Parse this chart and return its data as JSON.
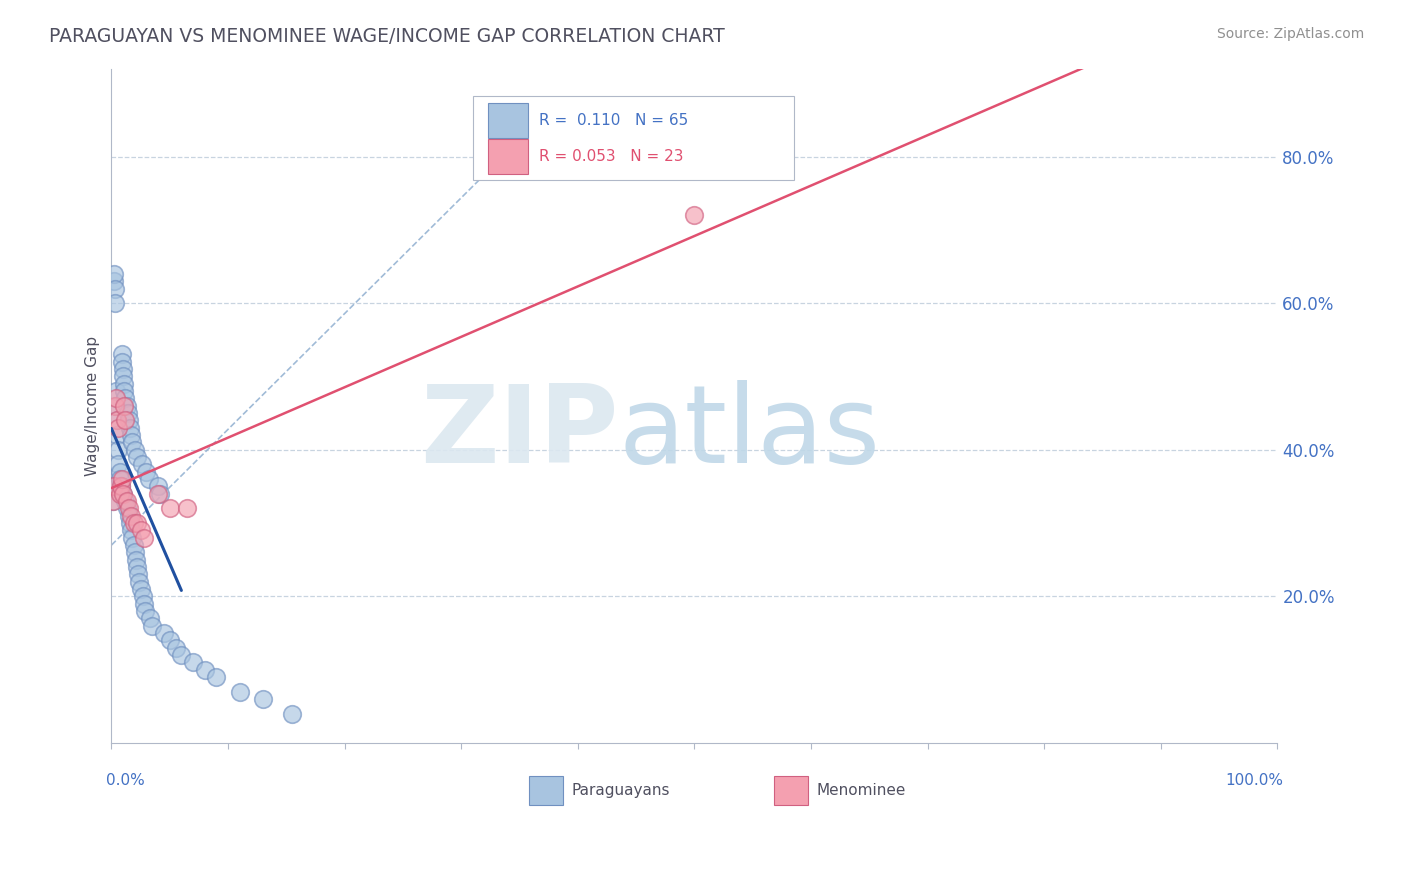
{
  "title": "PARAGUAYAN VS MENOMINEE WAGE/INCOME GAP CORRELATION CHART",
  "source": "Source: ZipAtlas.com",
  "ylabel": "Wage/Income Gap",
  "paraguayan_color": "#a8c4e0",
  "paraguayan_edge": "#7090c0",
  "menominee_color": "#f4a0b0",
  "menominee_edge": "#d06080",
  "regression_blue_color": "#2050a0",
  "regression_pink_color": "#e05070",
  "diagonal_color": "#90afd0",
  "background_color": "#ffffff",
  "grid_color": "#c8d4e0",
  "right_tick_color": "#4472c4",
  "paraguayan_x": [
    0.001,
    0.001,
    0.002,
    0.002,
    0.003,
    0.003,
    0.004,
    0.004,
    0.005,
    0.005,
    0.006,
    0.006,
    0.007,
    0.007,
    0.008,
    0.008,
    0.009,
    0.009,
    0.01,
    0.01,
    0.01,
    0.011,
    0.011,
    0.012,
    0.012,
    0.013,
    0.013,
    0.014,
    0.015,
    0.015,
    0.016,
    0.016,
    0.017,
    0.017,
    0.018,
    0.018,
    0.019,
    0.02,
    0.02,
    0.021,
    0.022,
    0.022,
    0.023,
    0.024,
    0.025,
    0.026,
    0.027,
    0.028,
    0.029,
    0.03,
    0.032,
    0.033,
    0.035,
    0.04,
    0.042,
    0.045,
    0.05,
    0.055,
    0.06,
    0.07,
    0.08,
    0.09,
    0.11,
    0.13,
    0.155
  ],
  "paraguayan_y": [
    0.33,
    0.35,
    0.63,
    0.64,
    0.62,
    0.6,
    0.48,
    0.46,
    0.44,
    0.42,
    0.4,
    0.38,
    0.37,
    0.36,
    0.35,
    0.34,
    0.53,
    0.52,
    0.51,
    0.5,
    0.34,
    0.49,
    0.48,
    0.47,
    0.33,
    0.46,
    0.32,
    0.45,
    0.44,
    0.31,
    0.43,
    0.3,
    0.42,
    0.29,
    0.41,
    0.28,
    0.27,
    0.4,
    0.26,
    0.25,
    0.39,
    0.24,
    0.23,
    0.22,
    0.21,
    0.38,
    0.2,
    0.19,
    0.18,
    0.37,
    0.36,
    0.17,
    0.16,
    0.35,
    0.34,
    0.15,
    0.14,
    0.13,
    0.12,
    0.11,
    0.1,
    0.09,
    0.07,
    0.06,
    0.04
  ],
  "menominee_x": [
    0.001,
    0.002,
    0.003,
    0.004,
    0.005,
    0.006,
    0.007,
    0.008,
    0.009,
    0.01,
    0.011,
    0.012,
    0.013,
    0.015,
    0.017,
    0.019,
    0.022,
    0.025,
    0.028,
    0.04,
    0.05,
    0.065,
    0.5
  ],
  "menominee_y": [
    0.33,
    0.35,
    0.46,
    0.47,
    0.44,
    0.43,
    0.34,
    0.35,
    0.36,
    0.34,
    0.46,
    0.44,
    0.33,
    0.32,
    0.31,
    0.3,
    0.3,
    0.29,
    0.28,
    0.34,
    0.32,
    0.32,
    0.72
  ],
  "xlim": [
    0.0,
    1.0
  ],
  "ylim": [
    0.0,
    0.92
  ],
  "yticks": [
    0.2,
    0.4,
    0.6,
    0.8
  ],
  "ytick_labels": [
    "20.0%",
    "40.0%",
    "60.0%",
    "80.0%"
  ],
  "xtick_labels": [
    "0.0%",
    "",
    "",
    "",
    "",
    "",
    "",
    "",
    "",
    "",
    "100.0%"
  ],
  "legend_blue_text": "R =  0.110   N = 65",
  "legend_pink_text": "R = 0.053   N = 23",
  "legend_label_paraguayan": "Paraguayans",
  "legend_label_menominee": "Menominee"
}
